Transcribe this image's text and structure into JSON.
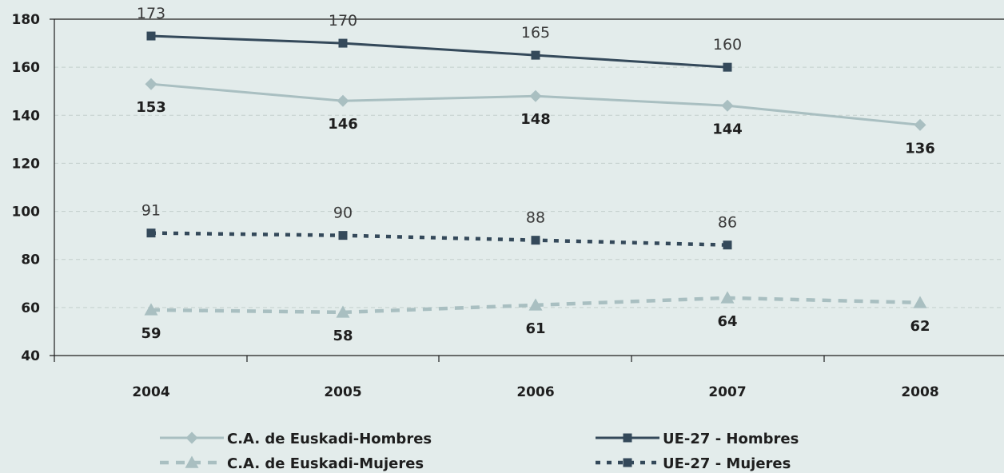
{
  "chart_data": {
    "type": "line",
    "title": "",
    "xlabel": "",
    "ylabel": "",
    "categories": [
      "2004",
      "2005",
      "2006",
      "2007",
      "2008"
    ],
    "ylim": [
      40,
      180
    ],
    "yticks": [
      40,
      60,
      80,
      100,
      120,
      140,
      160,
      180
    ],
    "grid": true,
    "legend_position": "bottom",
    "series": [
      {
        "name": "C.A. de Euskadi-Hombres",
        "values": [
          153,
          146,
          148,
          144,
          136
        ],
        "color": "#a9bfc1",
        "dash": "solid",
        "marker": "diamond",
        "labels": [
          "153",
          "146",
          "148",
          "144",
          "136"
        ],
        "label_style": "bold"
      },
      {
        "name": "UE-27 - Hombres",
        "values": [
          173,
          170,
          165,
          160,
          null
        ],
        "color": "#34495a",
        "dash": "solid",
        "marker": "square",
        "labels": [
          "173",
          "170",
          "165",
          "160",
          ""
        ],
        "label_style": "light"
      },
      {
        "name": "C.A. de Euskadi-Mujeres",
        "values": [
          59,
          58,
          61,
          64,
          62
        ],
        "color": "#a9bfc1",
        "dash": "dashed",
        "marker": "triangle",
        "labels": [
          "59",
          "58",
          "61",
          "64",
          "62"
        ],
        "label_style": "bold"
      },
      {
        "name": "UE-27 - Mujeres",
        "values": [
          91,
          90,
          88,
          86,
          null
        ],
        "color": "#34495a",
        "dash": "dotted",
        "marker": "square",
        "labels": [
          "91",
          "90",
          "88",
          "86",
          ""
        ],
        "label_style": "light"
      }
    ]
  }
}
